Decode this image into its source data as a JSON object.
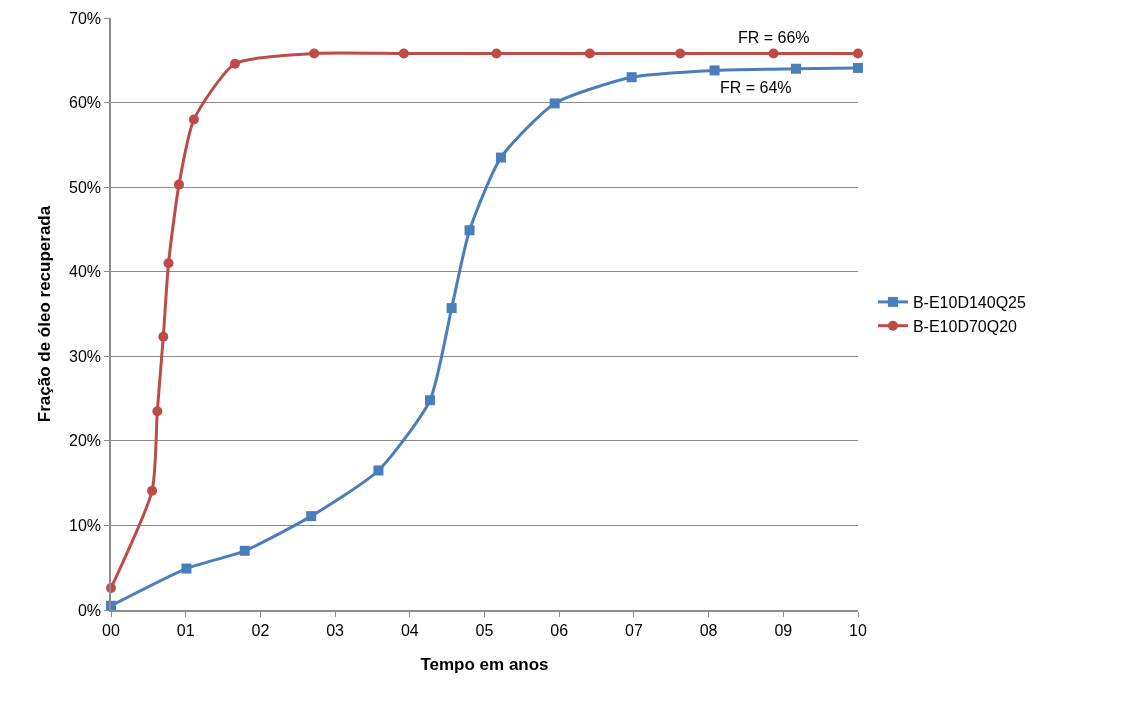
{
  "chart_data": {
    "type": "line",
    "xlabel": "Tempo em anos",
    "ylabel": "Fração de óleo recuperada",
    "xlim": [
      0,
      10
    ],
    "xticks": [
      {
        "value": 0,
        "label": "00"
      },
      {
        "value": 1,
        "label": "01"
      },
      {
        "value": 2,
        "label": "02"
      },
      {
        "value": 3,
        "label": "03"
      },
      {
        "value": 4,
        "label": "04"
      },
      {
        "value": 5,
        "label": "05"
      },
      {
        "value": 6,
        "label": "06"
      },
      {
        "value": 7,
        "label": "07"
      },
      {
        "value": 8,
        "label": "08"
      },
      {
        "value": 9,
        "label": "09"
      },
      {
        "value": 10,
        "label": "10"
      }
    ],
    "ylim": [
      0,
      70
    ],
    "yticks": [
      {
        "value": 0,
        "label": "0%"
      },
      {
        "value": 10,
        "label": "10%"
      },
      {
        "value": 20,
        "label": "20%"
      },
      {
        "value": 30,
        "label": "30%"
      },
      {
        "value": 40,
        "label": "40%"
      },
      {
        "value": 50,
        "label": "50%"
      },
      {
        "value": 60,
        "label": "60%"
      },
      {
        "value": 70,
        "label": "70%"
      }
    ],
    "grid": "y",
    "legend": "right",
    "series": [
      {
        "name": "B-E10D140Q25",
        "color": "#4a7ebb",
        "marker": "square",
        "x": [
          0,
          1.01,
          1.79,
          2.68,
          3.58,
          4.27,
          4.56,
          4.8,
          5.22,
          5.94,
          6.97,
          8.08,
          9.17,
          10
        ],
        "values": [
          0.5,
          4.9,
          7.0,
          11.1,
          16.5,
          24.8,
          35.7,
          44.9,
          53.5,
          59.9,
          63.0,
          63.8,
          64.0,
          64.1
        ]
      },
      {
        "name": "B-E10D70Q20",
        "color": "#be4b48",
        "marker": "circle",
        "x": [
          0,
          0.55,
          0.62,
          0.7,
          0.77,
          0.91,
          1.11,
          1.66,
          2.72,
          3.92,
          5.16,
          6.41,
          7.62,
          8.87,
          10
        ],
        "values": [
          2.6,
          14.1,
          23.5,
          32.3,
          41.0,
          50.3,
          58.0,
          64.6,
          65.8,
          65.8,
          65.8,
          65.8,
          65.8,
          65.8,
          65.8
        ]
      }
    ],
    "annotations": [
      {
        "text": "FR = 66%",
        "x": 8.87,
        "y": 65.8
      },
      {
        "text": "FR = 64%",
        "x": 9.17,
        "y": 64.0
      }
    ]
  }
}
